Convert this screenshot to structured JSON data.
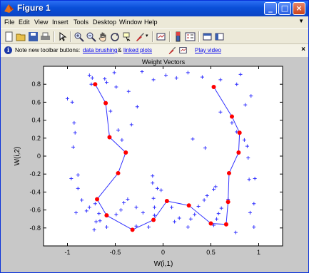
{
  "window": {
    "title": "Figure 1"
  },
  "menus": [
    "File",
    "Edit",
    "View",
    "Insert",
    "Tools",
    "Desktop",
    "Window",
    "Help"
  ],
  "infobar": {
    "text": "Note new toolbar buttons:",
    "link1": "data brushing",
    "amp": "&",
    "link2": "linked plots",
    "link3": "Play video"
  },
  "toolbar_icons": [
    "new-figure-icon",
    "open-file-icon",
    "save-icon",
    "print-icon",
    "pointer-icon",
    "zoom-in-icon",
    "zoom-out-icon",
    "pan-icon",
    "rotate-icon",
    "data-cursor-icon",
    "brush-icon",
    "link-icon",
    "colorbar-icon",
    "legend-icon",
    "hide-plot-tools-icon",
    "show-plot-tools-icon"
  ],
  "chart_data": {
    "type": "scatter",
    "title": "Weight Vectors",
    "xlabel": "W(i,1)",
    "ylabel": "W(i,2)",
    "xlim": [
      -1.25,
      1.25
    ],
    "ylim": [
      -1.0,
      1.0
    ],
    "xticks": [
      -1,
      -0.5,
      0,
      0.5,
      1
    ],
    "yticks": [
      -0.8,
      -0.6,
      -0.4,
      -0.2,
      0,
      0.2,
      0.4,
      0.6,
      0.8
    ],
    "colors": {
      "points": "#3333ff",
      "nodes": "#ff0000",
      "lines": "#3333ff"
    },
    "input_points": {
      "x": [
        -0.77,
        -0.74,
        -0.75,
        -0.61,
        -0.59,
        -0.51,
        -0.49,
        -0.36,
        -0.22,
        -0.1,
        0.03,
        0.14,
        0.26,
        0.41,
        0.6,
        0.77,
        0.81,
        -1.0,
        -0.95,
        -0.93,
        -0.92,
        -0.94,
        -0.89,
        -0.96,
        -0.89,
        -0.85,
        -0.91,
        -0.8,
        -0.77,
        -0.71,
        -0.67,
        -0.72,
        -0.66,
        -0.7,
        -0.59,
        -0.49,
        -0.44,
        -0.41,
        -0.37,
        -0.21,
        -0.28,
        -0.15,
        -0.09,
        -0.09,
        -0.1,
        -0.06,
        -0.11,
        -0.11,
        -0.02,
        0.09,
        0.12,
        0.17,
        0.26,
        0.29,
        0.33,
        0.37,
        0.43,
        0.46,
        0.53,
        0.55,
        0.56,
        0.53,
        0.58,
        0.61,
        0.68,
        0.76,
        0.95,
        0.91,
        0.95,
        0.9,
        0.89,
        0.88,
        0.85,
        0.77,
        0.72,
        0.6,
        0.92,
        0.86,
        0.96,
        -0.55,
        -0.27,
        -0.33,
        -0.43,
        -0.47,
        0.31,
        0.44,
        -0.28
      ],
      "y": [
        0.9,
        0.87,
        0.8,
        0.86,
        0.82,
        0.93,
        0.77,
        0.72,
        0.94,
        0.85,
        0.9,
        0.87,
        0.93,
        0.88,
        0.85,
        0.8,
        0.91,
        0.64,
        0.6,
        0.37,
        0.26,
        0.1,
        -0.21,
        -0.25,
        -0.36,
        -0.49,
        -0.63,
        -0.61,
        -0.57,
        -0.53,
        -0.64,
        -0.82,
        -0.72,
        -0.73,
        -0.79,
        -0.65,
        -0.6,
        -0.52,
        -0.48,
        -0.63,
        -0.78,
        -0.79,
        -0.66,
        -0.57,
        -0.47,
        -0.36,
        -0.3,
        -0.22,
        -0.38,
        -0.57,
        -0.73,
        -0.69,
        -0.79,
        -0.7,
        -0.65,
        -0.56,
        -0.49,
        -0.44,
        -0.37,
        -0.34,
        -0.7,
        -0.77,
        -0.64,
        -0.58,
        -0.48,
        -0.85,
        -0.53,
        -0.63,
        -0.79,
        -0.26,
        -0.02,
        0.11,
        0.18,
        0.27,
        0.37,
        0.49,
        0.67,
        0.57,
        -0.25,
        0.5,
        0.55,
        0.35,
        0.18,
        0.29,
        0.19,
        0.09,
        -0.57
      ]
    },
    "som_nodes": {
      "x": [
        -0.71,
        -0.6,
        -0.56,
        -0.39,
        -0.47,
        -0.69,
        -0.59,
        -0.32,
        -0.1,
        0.04,
        0.27,
        0.5,
        0.66,
        0.68,
        0.69,
        0.79,
        0.8,
        0.72,
        0.53
      ],
      "y": [
        0.8,
        0.59,
        0.21,
        0.04,
        -0.19,
        -0.48,
        -0.66,
        -0.82,
        -0.71,
        -0.5,
        -0.55,
        -0.75,
        -0.76,
        -0.51,
        -0.19,
        0.04,
        0.26,
        0.44,
        0.77
      ]
    }
  }
}
